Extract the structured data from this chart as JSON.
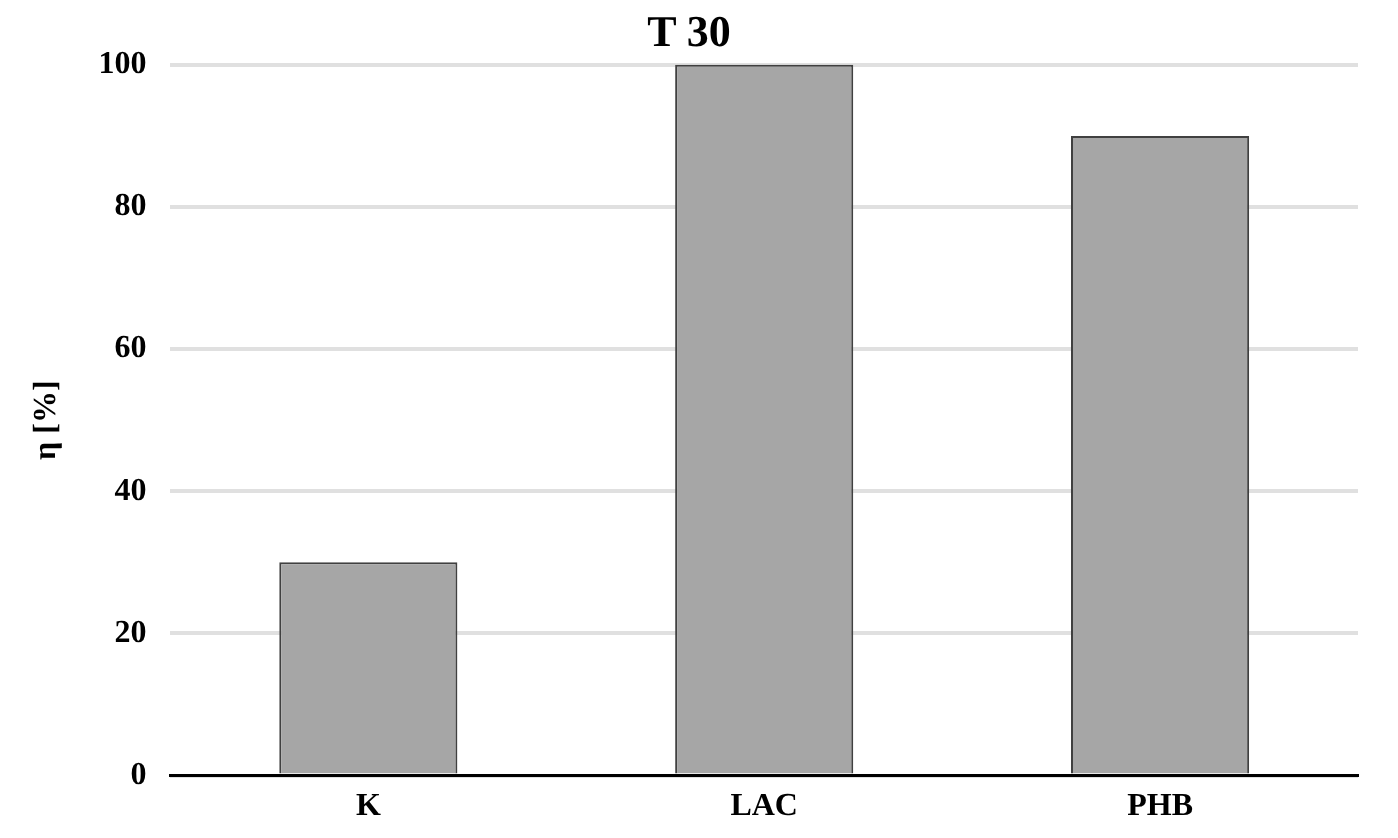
{
  "chart_data": {
    "type": "bar",
    "title": "T 30",
    "ylabel": "η [%]",
    "categories": [
      "K",
      "LAC",
      "PHB"
    ],
    "values": [
      30,
      100,
      90
    ],
    "color": "#a6a6a6",
    "ylim": [
      0,
      100
    ],
    "yticks": [
      0,
      20,
      40,
      60,
      80,
      100
    ],
    "grid": "y",
    "legend": false
  }
}
